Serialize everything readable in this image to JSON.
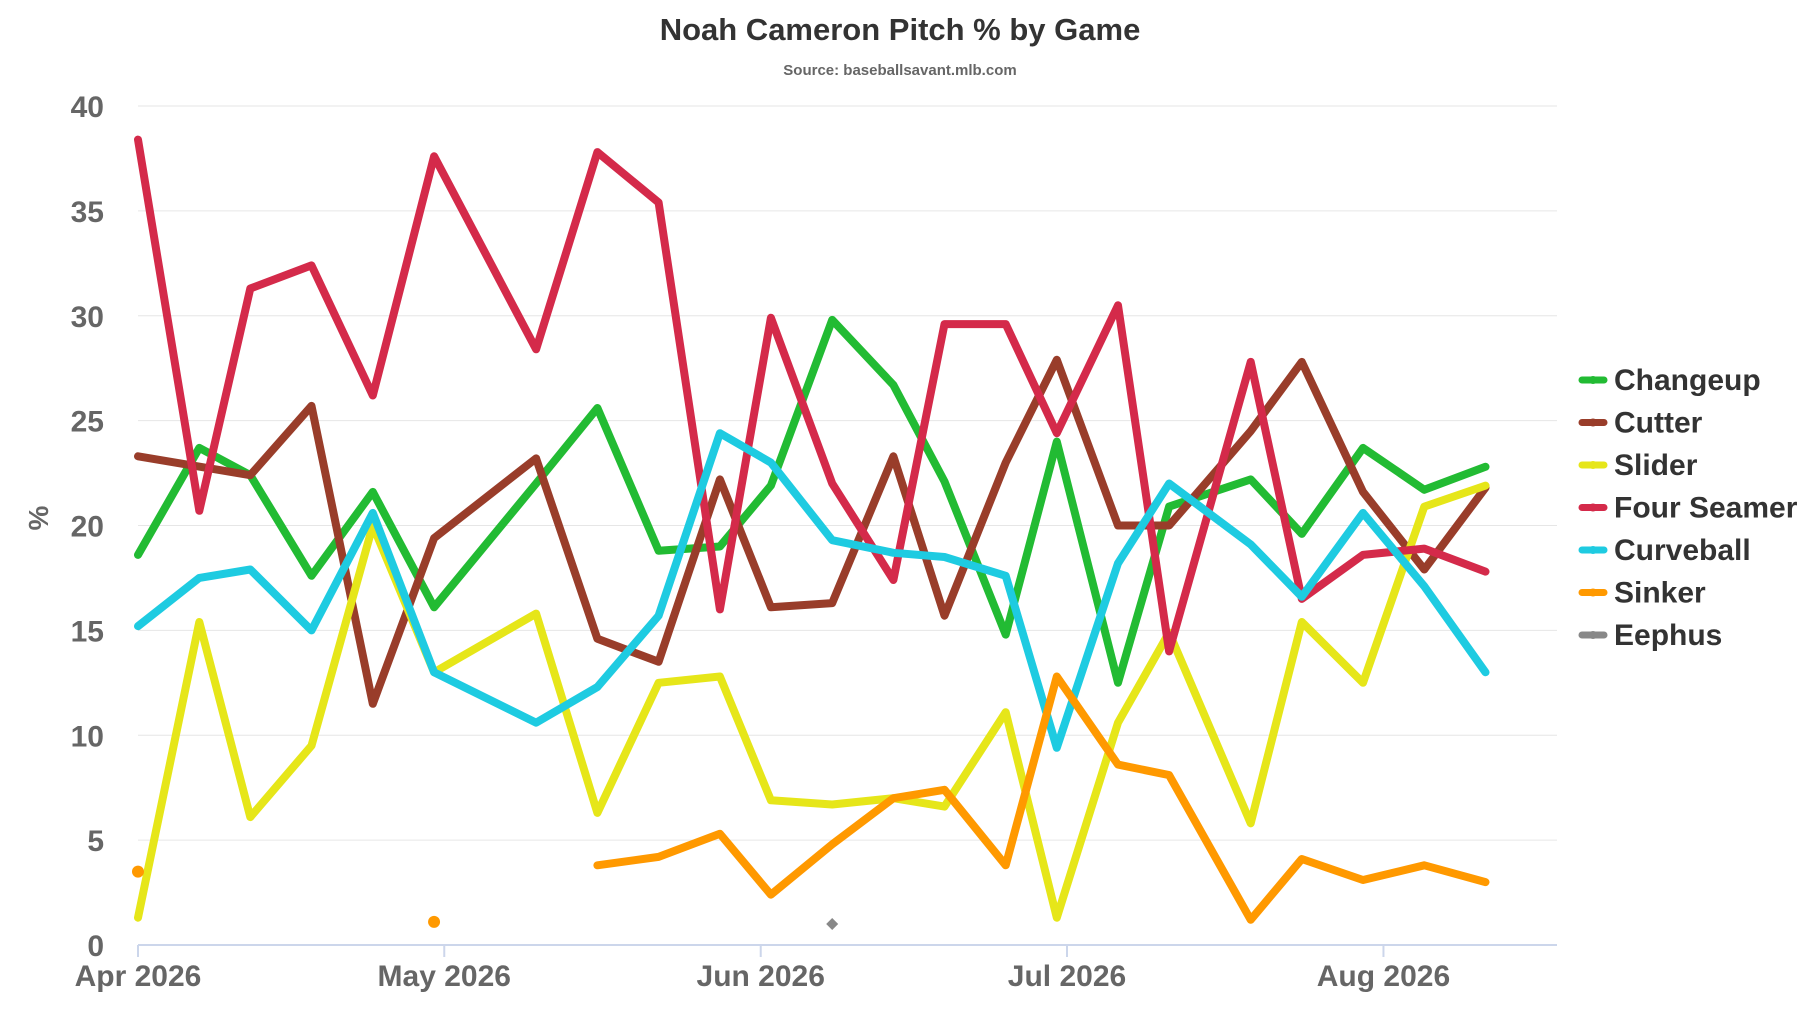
{
  "chart_data": {
    "type": "line",
    "title": "Noah Cameron Pitch % by Game",
    "subtitle": "Source: baseballsavant.mlb.com",
    "ylabel": "%",
    "xlabel": "",
    "ylim": [
      0,
      40
    ],
    "yticks": [
      0,
      5,
      10,
      15,
      20,
      25,
      30,
      35,
      40
    ],
    "xlim": [
      "2026-04-01",
      "2026-08-18"
    ],
    "xticks": [
      {
        "date": "2026-04-01",
        "label": "Apr 2026"
      },
      {
        "date": "2026-05-01",
        "label": "May 2026"
      },
      {
        "date": "2026-06-01",
        "label": "Jun 2026"
      },
      {
        "date": "2026-07-01",
        "label": "Jul 2026"
      },
      {
        "date": "2026-08-01",
        "label": "Aug 2026"
      }
    ],
    "grid": true,
    "legend_position": "right",
    "series": [
      {
        "name": "Changeup",
        "color": "#22bb33",
        "points": [
          [
            "2026-04-01",
            18.6
          ],
          [
            "2026-04-07",
            23.7
          ],
          [
            "2026-04-12",
            22.4
          ],
          [
            "2026-04-18",
            17.6
          ],
          [
            "2026-04-24",
            21.6
          ],
          [
            "2026-04-30",
            16.1
          ],
          [
            "2026-05-10",
            22.0
          ],
          [
            "2026-05-16",
            25.6
          ],
          [
            "2026-05-22",
            18.8
          ],
          [
            "2026-05-28",
            19.0
          ],
          [
            "2026-06-02",
            21.9
          ],
          [
            "2026-06-08",
            29.8
          ],
          [
            "2026-06-14",
            26.7
          ],
          [
            "2026-06-19",
            22.1
          ],
          [
            "2026-06-25",
            14.8
          ],
          [
            "2026-06-30",
            24.0
          ],
          [
            "2026-07-06",
            12.5
          ],
          [
            "2026-07-11",
            20.9
          ],
          [
            "2026-07-19",
            22.2
          ],
          [
            "2026-07-24",
            19.6
          ],
          [
            "2026-07-30",
            23.7
          ],
          [
            "2026-08-05",
            21.7
          ],
          [
            "2026-08-11",
            22.8
          ]
        ]
      },
      {
        "name": "Cutter",
        "color": "#993d2a",
        "points": [
          [
            "2026-04-01",
            23.3
          ],
          [
            "2026-04-12",
            22.4
          ],
          [
            "2026-04-18",
            25.7
          ],
          [
            "2026-04-24",
            11.5
          ],
          [
            "2026-04-30",
            19.4
          ],
          [
            "2026-05-10",
            23.2
          ],
          [
            "2026-05-16",
            14.6
          ],
          [
            "2026-05-22",
            13.5
          ],
          [
            "2026-05-28",
            22.2
          ],
          [
            "2026-06-02",
            16.1
          ],
          [
            "2026-06-08",
            16.3
          ],
          [
            "2026-06-14",
            23.3
          ],
          [
            "2026-06-19",
            15.7
          ],
          [
            "2026-06-25",
            23.0
          ],
          [
            "2026-06-30",
            27.9
          ],
          [
            "2026-07-06",
            20.0
          ],
          [
            "2026-07-11",
            20.0
          ],
          [
            "2026-07-19",
            24.5
          ],
          [
            "2026-07-24",
            27.8
          ],
          [
            "2026-07-30",
            21.6
          ],
          [
            "2026-08-05",
            17.9
          ],
          [
            "2026-08-11",
            21.8
          ]
        ]
      },
      {
        "name": "Slider",
        "color": "#e6e619",
        "points": [
          [
            "2026-04-01",
            1.3
          ],
          [
            "2026-04-07",
            15.4
          ],
          [
            "2026-04-12",
            6.1
          ],
          [
            "2026-04-18",
            9.5
          ],
          [
            "2026-04-24",
            20.0
          ],
          [
            "2026-04-30",
            13.0
          ],
          [
            "2026-05-10",
            15.8
          ],
          [
            "2026-05-16",
            6.3
          ],
          [
            "2026-05-22",
            12.5
          ],
          [
            "2026-05-28",
            12.8
          ],
          [
            "2026-06-02",
            6.9
          ],
          [
            "2026-06-08",
            6.7
          ],
          [
            "2026-06-14",
            7.0
          ],
          [
            "2026-06-19",
            6.6
          ],
          [
            "2026-06-25",
            11.1
          ],
          [
            "2026-06-30",
            1.3
          ],
          [
            "2026-07-06",
            10.6
          ],
          [
            "2026-07-11",
            14.9
          ],
          [
            "2026-07-19",
            5.8
          ],
          [
            "2026-07-24",
            15.4
          ],
          [
            "2026-07-30",
            12.5
          ],
          [
            "2026-08-05",
            20.9
          ],
          [
            "2026-08-11",
            21.9
          ]
        ]
      },
      {
        "name": "Four Seamer",
        "color": "#d42a4a",
        "points": [
          [
            "2026-04-01",
            38.4
          ],
          [
            "2026-04-07",
            20.7
          ],
          [
            "2026-04-12",
            31.3
          ],
          [
            "2026-04-18",
            32.4
          ],
          [
            "2026-04-24",
            26.2
          ],
          [
            "2026-04-30",
            37.6
          ],
          [
            "2026-05-10",
            28.4
          ],
          [
            "2026-05-16",
            37.8
          ],
          [
            "2026-05-22",
            35.4
          ],
          [
            "2026-05-28",
            16.0
          ],
          [
            "2026-06-02",
            29.9
          ],
          [
            "2026-06-08",
            22.0
          ],
          [
            "2026-06-14",
            17.4
          ],
          [
            "2026-06-19",
            29.6
          ],
          [
            "2026-06-25",
            29.6
          ],
          [
            "2026-06-30",
            24.4
          ],
          [
            "2026-07-06",
            30.5
          ],
          [
            "2026-07-11",
            14.0
          ],
          [
            "2026-07-19",
            27.8
          ],
          [
            "2026-07-24",
            16.5
          ],
          [
            "2026-07-30",
            18.6
          ],
          [
            "2026-08-05",
            18.9
          ],
          [
            "2026-08-11",
            17.8
          ]
        ]
      },
      {
        "name": "Curveball",
        "color": "#1ecbe1",
        "points": [
          [
            "2026-04-01",
            15.2
          ],
          [
            "2026-04-07",
            17.5
          ],
          [
            "2026-04-12",
            17.9
          ],
          [
            "2026-04-18",
            15.0
          ],
          [
            "2026-04-24",
            20.6
          ],
          [
            "2026-04-30",
            13.0
          ],
          [
            "2026-05-10",
            10.6
          ],
          [
            "2026-05-16",
            12.3
          ],
          [
            "2026-05-22",
            15.7
          ],
          [
            "2026-05-28",
            24.4
          ],
          [
            "2026-06-02",
            23.0
          ],
          [
            "2026-06-08",
            19.3
          ],
          [
            "2026-06-14",
            18.7
          ],
          [
            "2026-06-19",
            18.5
          ],
          [
            "2026-06-25",
            17.6
          ],
          [
            "2026-06-30",
            9.4
          ],
          [
            "2026-07-06",
            18.2
          ],
          [
            "2026-07-11",
            22.0
          ],
          [
            "2026-07-19",
            19.1
          ],
          [
            "2026-07-24",
            16.6
          ],
          [
            "2026-07-30",
            20.6
          ],
          [
            "2026-08-05",
            17.1
          ],
          [
            "2026-08-11",
            13.0
          ]
        ]
      },
      {
        "name": "Sinker",
        "color": "#ff9900",
        "points": [
          [
            "2026-04-01",
            3.5
          ],
          [
            "2026-04-30",
            1.1
          ],
          [
            "2026-05-16",
            3.8
          ],
          [
            "2026-05-22",
            4.2
          ],
          [
            "2026-05-28",
            5.3
          ],
          [
            "2026-06-02",
            2.4
          ],
          [
            "2026-06-08",
            4.8
          ],
          [
            "2026-06-14",
            7.0
          ],
          [
            "2026-06-19",
            7.4
          ],
          [
            "2026-06-25",
            3.8
          ],
          [
            "2026-06-30",
            12.8
          ],
          [
            "2026-07-06",
            8.6
          ],
          [
            "2026-07-11",
            8.1
          ],
          [
            "2026-07-19",
            1.2
          ],
          [
            "2026-07-24",
            4.1
          ],
          [
            "2026-07-30",
            3.1
          ],
          [
            "2026-08-05",
            3.8
          ],
          [
            "2026-08-11",
            3.0
          ]
        ],
        "isolated_dates": [
          "2026-04-01",
          "2026-04-30"
        ]
      },
      {
        "name": "Eephus",
        "color": "#888888",
        "points": [
          [
            "2026-06-08",
            1.0
          ]
        ]
      }
    ]
  }
}
